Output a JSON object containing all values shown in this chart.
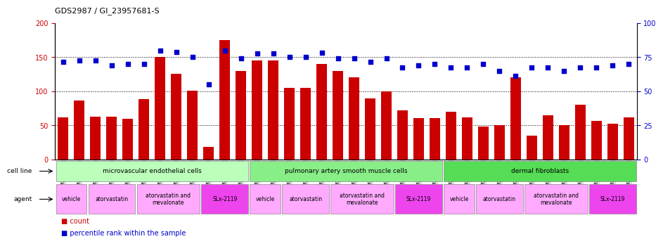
{
  "title": "GDS2987 / GI_23957681-S",
  "gsm_labels": [
    "GSM214810",
    "GSM215244",
    "GSM215253",
    "GSM215254",
    "GSM215282",
    "GSM215344",
    "GSM215283",
    "GSM215284",
    "GSM215293",
    "GSM215294",
    "GSM215295",
    "GSM215296",
    "GSM215297",
    "GSM215298",
    "GSM215310",
    "GSM215311",
    "GSM215312",
    "GSM215313",
    "GSM215324",
    "GSM215325",
    "GSM215326",
    "GSM215327",
    "GSM215328",
    "GSM215329",
    "GSM215330",
    "GSM215331",
    "GSM215332",
    "GSM215333",
    "GSM215334",
    "GSM215335",
    "GSM215336",
    "GSM215337",
    "GSM215338",
    "GSM215339",
    "GSM215340",
    "GSM215341"
  ],
  "bar_values": [
    62,
    86,
    63,
    63,
    60,
    89,
    150,
    126,
    101,
    18,
    175,
    130,
    145,
    145,
    105,
    105,
    140,
    130,
    120,
    90,
    100,
    72,
    61,
    61,
    70,
    62,
    48,
    50,
    120,
    35,
    65,
    50,
    80,
    57,
    52,
    62
  ],
  "percentile_values": [
    143,
    145,
    145,
    138,
    140,
    140,
    160,
    158,
    150,
    110,
    160,
    148,
    155,
    155,
    150,
    150,
    157,
    148,
    148,
    143,
    148,
    135,
    138,
    140,
    135,
    135,
    140,
    130,
    122,
    135,
    135,
    130,
    135,
    135,
    138,
    140
  ],
  "bar_color": "#cc0000",
  "percentile_color": "#0000cc",
  "left_ylim": [
    0,
    200
  ],
  "right_ylim": [
    0,
    100
  ],
  "left_yticks": [
    0,
    50,
    100,
    150,
    200
  ],
  "right_yticks": [
    0,
    25,
    50,
    75,
    100
  ],
  "dotted_lines": [
    50,
    100,
    150
  ],
  "cell_groups": [
    {
      "label": "microvascular endothelial cells",
      "start": 0,
      "end": 12,
      "color": "#bbffbb"
    },
    {
      "label": "pulmonary artery smooth muscle cells",
      "start": 12,
      "end": 24,
      "color": "#88ee88"
    },
    {
      "label": "dermal fibroblasts",
      "start": 24,
      "end": 36,
      "color": "#55dd55"
    }
  ],
  "agent_groups": [
    {
      "label": "vehicle",
      "start": 0,
      "end": 2,
      "color": "#ffaaff"
    },
    {
      "label": "atorvastatin",
      "start": 2,
      "end": 5,
      "color": "#ffaaff"
    },
    {
      "label": "atorvastatin and\nmevalonate",
      "start": 5,
      "end": 9,
      "color": "#ffaaff"
    },
    {
      "label": "SLx-2119",
      "start": 9,
      "end": 12,
      "color": "#ee44ee"
    },
    {
      "label": "vehicle",
      "start": 12,
      "end": 14,
      "color": "#ffaaff"
    },
    {
      "label": "atorvastatin",
      "start": 14,
      "end": 17,
      "color": "#ffaaff"
    },
    {
      "label": "atorvastatin and\nmevalonate",
      "start": 17,
      "end": 21,
      "color": "#ffaaff"
    },
    {
      "label": "SLx-2119",
      "start": 21,
      "end": 24,
      "color": "#ee44ee"
    },
    {
      "label": "vehicle",
      "start": 24,
      "end": 26,
      "color": "#ffaaff"
    },
    {
      "label": "atorvastatin",
      "start": 26,
      "end": 29,
      "color": "#ffaaff"
    },
    {
      "label": "atorvastatin and\nmevalonate",
      "start": 29,
      "end": 33,
      "color": "#ffaaff"
    },
    {
      "label": "SLx-2119",
      "start": 33,
      "end": 36,
      "color": "#ee44ee"
    }
  ],
  "bar_color_legend": "#cc0000",
  "pct_color_legend": "#0000cc",
  "bg_color": "#ffffff",
  "xticklabel_bg": "#dddddd"
}
